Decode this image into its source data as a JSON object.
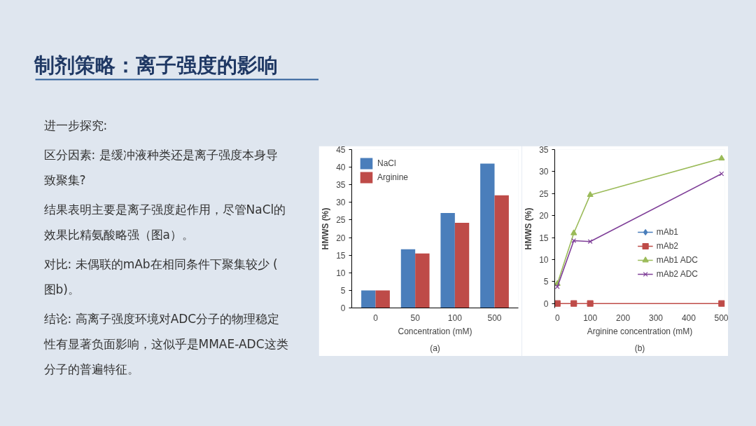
{
  "chart_data": [
    {
      "type": "other",
      "title": "制剂策略：离子强度的影响",
      "annotations": [
        "进一步探究:",
        "区分因素: 是缓冲液种类还是离子强度本身导致聚集?",
        "结果表明主要是离子强度起作用，尽管NaCl的效果比精氨酸略强（图a）。",
        "对比: 未偶联的mAb在相同条件下聚集较少 (图b)。",
        "结论: 高离子强度环境对ADC分子的物理稳定性有显著负面影响，这似乎是MMAE-ADC这类分子的普遍特征。"
      ]
    },
    {
      "type": "bar",
      "categories": [
        "0",
        "50",
        "100",
        "500"
      ],
      "xlabel": "Concentration (mM)",
      "ylabel": "HMWS (%)",
      "series": [
        {
          "name": "NaCl",
          "color": "#4a7ebb",
          "values": [
            5,
            16.7,
            27,
            41
          ]
        },
        {
          "name": "Arginine",
          "color": "#be4b48",
          "values": [
            5,
            15.5,
            24.2,
            32
          ]
        }
      ],
      "ylim": [
        0,
        45
      ],
      "yticks": [
        0,
        5,
        10,
        15,
        20,
        25,
        30,
        35,
        40,
        45
      ],
      "grid": false,
      "legend": "top left",
      "annotations": [
        "(a)"
      ]
    },
    {
      "type": "line",
      "x": [
        0,
        50,
        100,
        500
      ],
      "xlabel": "Arginine concentration (mM)",
      "ylabel": "HMWS (%)",
      "series": [
        {
          "name": "mAb1",
          "color": "#4a7ebb",
          "marker": "diamond",
          "values": [
            null,
            null,
            null,
            null
          ]
        },
        {
          "name": "mAb2",
          "color": "#be4b48",
          "marker": "square",
          "values": [
            0,
            0,
            0,
            0
          ]
        },
        {
          "name": "mAb1 ADC",
          "color": "#9bbb59",
          "marker": "triangle",
          "values": [
            4.5,
            16,
            24.7,
            33
          ]
        },
        {
          "name": "mAb2 ADC",
          "color": "#7f3f98",
          "marker": "cross",
          "values": [
            3.8,
            14.3,
            14.1,
            29.5
          ]
        }
      ],
      "xlim": [
        -8,
        510
      ],
      "xticks": [
        0,
        100,
        200,
        300,
        400,
        500
      ],
      "ylim": [
        -1,
        35
      ],
      "yticks": [
        0,
        5,
        10,
        15,
        20,
        25,
        30,
        35
      ],
      "grid": false,
      "legend": "right",
      "line_style": "solid",
      "annotations": [
        "(b)"
      ]
    }
  ]
}
